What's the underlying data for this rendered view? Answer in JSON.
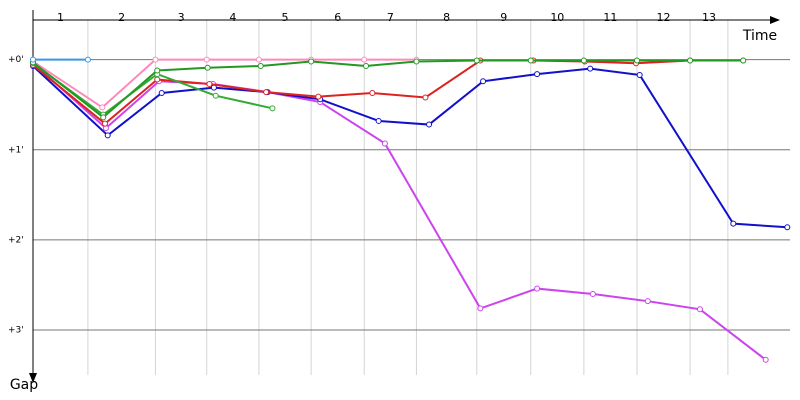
{
  "chart_data": {
    "type": "line",
    "x_label": "Time",
    "y_label": "Gap",
    "laps": [
      "1",
      "2",
      "3",
      "4",
      "5",
      "6",
      "7",
      "8",
      "9",
      "10",
      "11",
      "12",
      "13"
    ],
    "lap_boundaries": [
      0,
      0.61,
      1.36,
      1.93,
      2.51,
      3.09,
      3.68,
      4.26,
      4.93,
      5.53,
      6.12,
      6.71,
      7.3,
      7.72
    ],
    "xlim": [
      0,
      8.41
    ],
    "ylim": [
      -0.44,
      3.61
    ],
    "yticks": [
      {
        "value": 0,
        "label": "+0'"
      },
      {
        "value": 1,
        "label": "+1'"
      },
      {
        "value": 2,
        "label": "+2'"
      },
      {
        "value": 3,
        "label": "+3'"
      }
    ],
    "grid": true,
    "series": [
      {
        "color": "#cc44ee",
        "x": [
          0,
          0.81,
          1.4,
          2,
          2.61,
          3.19,
          3.91,
          4.97,
          5.6,
          6.22,
          6.83,
          7.41,
          8.14
        ],
        "values": [
          0.04,
          0.76,
          0.24,
          0.27,
          0.36,
          0.47,
          0.93,
          2.76,
          2.54,
          2.6,
          2.68,
          2.77,
          3.33
        ]
      },
      {
        "color": "#1111cc",
        "x": [
          0,
          0.83,
          1.43,
          2.01,
          2.6,
          3.19,
          3.84,
          4.4,
          5,
          5.6,
          6.19,
          6.74,
          7.78,
          8.38
        ],
        "values": [
          0.07,
          0.84,
          0.37,
          0.31,
          0.36,
          0.44,
          0.68,
          0.72,
          0.24,
          0.16,
          0.1,
          0.17,
          1.82,
          1.86
        ]
      },
      {
        "color": "#dd2222",
        "x": [
          0,
          0.8,
          1.38,
          1.96,
          2.59,
          3.17,
          3.77,
          4.36,
          4.97,
          5.56,
          6.13,
          6.7,
          7.3,
          7.89
        ],
        "values": [
          0.06,
          0.71,
          0.22,
          0.27,
          0.36,
          0.41,
          0.37,
          0.42,
          0.01,
          0.01,
          0.02,
          0.04,
          0.01,
          0.01
        ]
      },
      {
        "color": "#33aa33",
        "x": [
          0,
          0.78,
          1.38,
          2.03,
          2.66
        ],
        "values": [
          0.04,
          0.61,
          0.16,
          0.4,
          0.54
        ]
      },
      {
        "color": "#ff88bb",
        "x": [
          0,
          0.77,
          1.36,
          1.93,
          2.51,
          3.09,
          3.68,
          4.26
        ],
        "values": [
          0.02,
          0.53,
          0,
          0,
          0,
          0,
          0,
          0
        ]
      },
      {
        "color": "#229922",
        "x": [
          0,
          0.78,
          1.38,
          1.94,
          2.53,
          3.09,
          3.7,
          4.26,
          4.93,
          5.53,
          6.12,
          6.71,
          7.3,
          7.89
        ],
        "values": [
          0.03,
          0.64,
          0.12,
          0.09,
          0.07,
          0.02,
          0.07,
          0.02,
          0.01,
          0.01,
          0.01,
          0.01,
          0.01,
          0.01
        ]
      },
      {
        "color": "#3399ee",
        "x": [
          0,
          0.61
        ],
        "values": [
          0,
          0
        ]
      }
    ]
  }
}
